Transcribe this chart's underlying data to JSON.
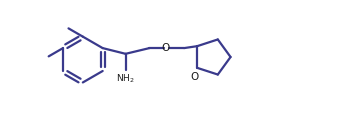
{
  "background_color": "#ffffff",
  "line_color": "#3a3a8c",
  "text_color": "#1a1a1a",
  "line_width": 1.6,
  "fig_width": 3.47,
  "fig_height": 1.35,
  "dpi": 100,
  "xlim": [
    0,
    10.5
  ],
  "ylim": [
    0,
    4.2
  ]
}
